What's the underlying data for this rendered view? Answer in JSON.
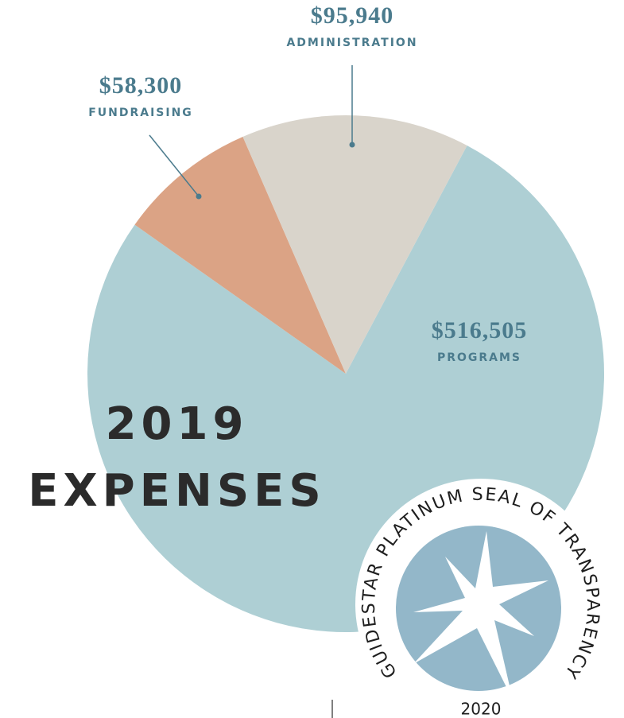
{
  "chart_data": {
    "type": "pie",
    "title": "2019 EXPENSES",
    "categories": [
      "PROGRAMS",
      "FUNDRAISING",
      "ADMINISTRATION"
    ],
    "values": [
      516505,
      58300,
      95940
    ],
    "value_labels": [
      "$516,505",
      "$58,300",
      "$95,940"
    ],
    "colors": [
      "#aecfd4",
      "#dba385",
      "#d9d4cb"
    ]
  },
  "badge": {
    "text": "GUIDESTAR PLATINUM SEAL OF TRANSPARENCY",
    "year": "2020"
  }
}
